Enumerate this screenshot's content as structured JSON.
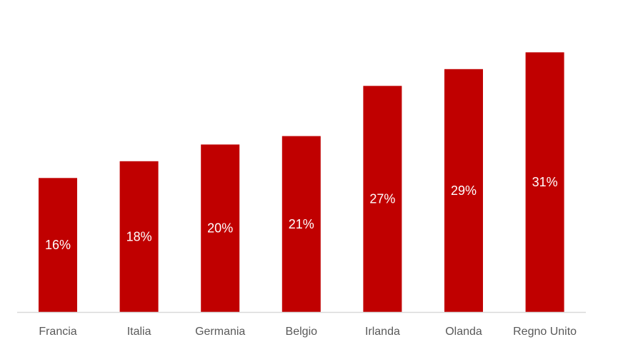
{
  "chart_data": {
    "type": "bar",
    "title": "",
    "xlabel": "",
    "ylabel": "",
    "categories": [
      "Francia",
      "Italia",
      "Germania",
      "Belgio",
      "Irlanda",
      "Olanda",
      "Regno Unito"
    ],
    "values": [
      16,
      18,
      20,
      21,
      27,
      29,
      31
    ],
    "value_labels": [
      "16%",
      "18%",
      "20%",
      "21%",
      "27%",
      "29%",
      "31%"
    ],
    "ylim": [
      0,
      33.5
    ],
    "grid": false,
    "legend": "none",
    "colors": {
      "bar": "#C00000",
      "axis": "#D9D9D9",
      "label_text": "#595959",
      "value_text": "#FFFFFF"
    }
  }
}
